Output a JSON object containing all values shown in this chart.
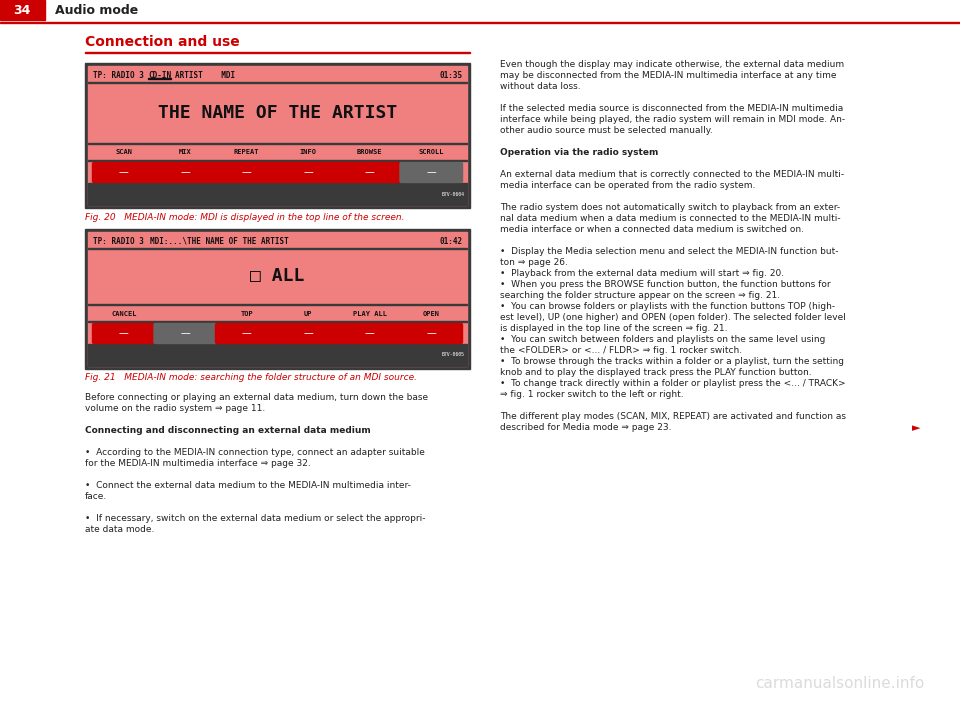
{
  "page_bg": "#ffffff",
  "header_bar_color": "#cc0000",
  "header_number": "34",
  "header_text": "Audio mode",
  "section_title": "Connection and use",
  "section_title_color": "#cc0000",
  "fig20_caption": "Fig. 20   MEDIA-IN mode: MDI is displayed in the top line of the screen.",
  "fig21_caption": "Fig. 21   MEDIA-IN mode: searching the folder structure of an MDI source.",
  "display1": {
    "bg": "#f08080",
    "border": "#333333",
    "main_text": "THE NAME OF THE ARTIST",
    "buttons_row": [
      "SCAN",
      "MIX",
      "REPEAT",
      "INFO",
      "BROWSE",
      "SCROLL"
    ],
    "button_color": "#cc0000",
    "button_last_color": "#666666",
    "top_left": "TP: RADIO 3",
    "top_cdin": "CD-IN",
    "top_mid": "ARTIST    MDI",
    "top_right": "01:35",
    "code": "B7V-0604"
  },
  "display2": {
    "bg": "#f08080",
    "border": "#333333",
    "main_text": "□ ALL",
    "buttons_row": [
      "CANCEL",
      "",
      "TOP",
      "UP",
      "PLAY ALL",
      "OPEN"
    ],
    "button_colors": [
      "#cc0000",
      "#666666",
      "#cc0000",
      "#cc0000",
      "#cc0000",
      "#cc0000"
    ],
    "top_left": "TP: RADIO 3",
    "top_mid": "MDI:...\\THE NAME OF THE ARTIST",
    "top_right": "01:42",
    "code": "B7V-0605"
  },
  "left_body": [
    {
      "text": "Before connecting or playing an external data medium, turn down the base",
      "bold": false
    },
    {
      "text": "volume on the radio system ⇒ page 11.",
      "bold": false
    },
    {
      "text": "",
      "bold": false
    },
    {
      "text": "Connecting and disconnecting an external data medium",
      "bold": true
    },
    {
      "text": "",
      "bold": false
    },
    {
      "text": "•  According to the MEDIA-IN connection type, connect an adapter suitable",
      "bold": false
    },
    {
      "text": "for the MEDIA-IN multimedia interface ⇒ page 32.",
      "bold": false
    },
    {
      "text": "",
      "bold": false
    },
    {
      "text": "•  Connect the external data medium to the MEDIA-IN multimedia inter-",
      "bold": false
    },
    {
      "text": "face.",
      "bold": false
    },
    {
      "text": "",
      "bold": false
    },
    {
      "text": "•  If necessary, switch on the external data medium or select the appropri-",
      "bold": false
    },
    {
      "text": "ate data mode.",
      "bold": false
    }
  ],
  "right_body": [
    {
      "text": "Even though the display may indicate otherwise, the external data medium",
      "bold": false
    },
    {
      "text": "may be disconnected from the MEDIA-IN multimedia interface at any time",
      "bold": false
    },
    {
      "text": "without data loss.",
      "bold": false
    },
    {
      "text": "",
      "bold": false
    },
    {
      "text": "If the selected media source is disconnected from the MEDIA-IN multimedia",
      "bold": false
    },
    {
      "text": "interface while being played, the radio system will remain in MDI mode. An-",
      "bold": false
    },
    {
      "text": "other audio source must be selected manually.",
      "bold": false
    },
    {
      "text": "",
      "bold": false
    },
    {
      "text": "Operation via the radio system",
      "bold": true
    },
    {
      "text": "",
      "bold": false
    },
    {
      "text": "An external data medium that is correctly connected to the MEDIA-IN multi-",
      "bold": false
    },
    {
      "text": "media interface can be operated from the radio system.",
      "bold": false
    },
    {
      "text": "",
      "bold": false
    },
    {
      "text": "The radio system does not automatically switch to playback from an exter-",
      "bold": false,
      "not_word": true
    },
    {
      "text": "nal data medium when a data medium is connected to the MEDIA-IN multi-",
      "bold": false
    },
    {
      "text": "media interface or when a connected data medium is switched on.",
      "bold": false
    },
    {
      "text": "",
      "bold": false
    },
    {
      "text": "•  Display the Media selection menu and select the MEDIA-IN function but-",
      "bold": false
    },
    {
      "text": "ton ⇒ page 26.",
      "bold": false
    },
    {
      "text": "•  Playback from the external data medium will start ⇒ fig. 20.",
      "bold": false
    },
    {
      "text": "•  When you press the BROWSE function button, the function buttons for",
      "bold": false
    },
    {
      "text": "searching the folder structure appear on the screen ⇒ fig. 21.",
      "bold": false
    },
    {
      "text": "•  You can browse folders or playlists with the function buttons TOP (high-",
      "bold": false
    },
    {
      "text": "est level), UP (one higher) and OPEN (open folder). The selected folder level",
      "bold": false
    },
    {
      "text": "is displayed in the top line of the screen ⇒ fig. 21.",
      "bold": false
    },
    {
      "text": "•  You can switch between folders and playlists on the same level using",
      "bold": false
    },
    {
      "text": "the <FOLDER> or <... / FLDR> ⇒ fig. 1 rocker switch.",
      "bold": false
    },
    {
      "text": "•  To browse through the tracks within a folder or a playlist, turn the setting",
      "bold": false
    },
    {
      "text": "knob and to play the displayed track press the PLAY function button.",
      "bold": false
    },
    {
      "text": "•  To change track directly within a folder or playlist press the <... / TRACK>",
      "bold": false
    },
    {
      "text": "⇒ fig. 1 rocker switch to the left or right.",
      "bold": false
    },
    {
      "text": "",
      "bold": false
    },
    {
      "text": "The different play modes (SCAN, MIX, REPEAT) are activated and function as",
      "bold": false
    },
    {
      "text": "described for Media mode ⇒ page 23.",
      "bold": false
    }
  ],
  "watermark": "carmanualsonline.info"
}
